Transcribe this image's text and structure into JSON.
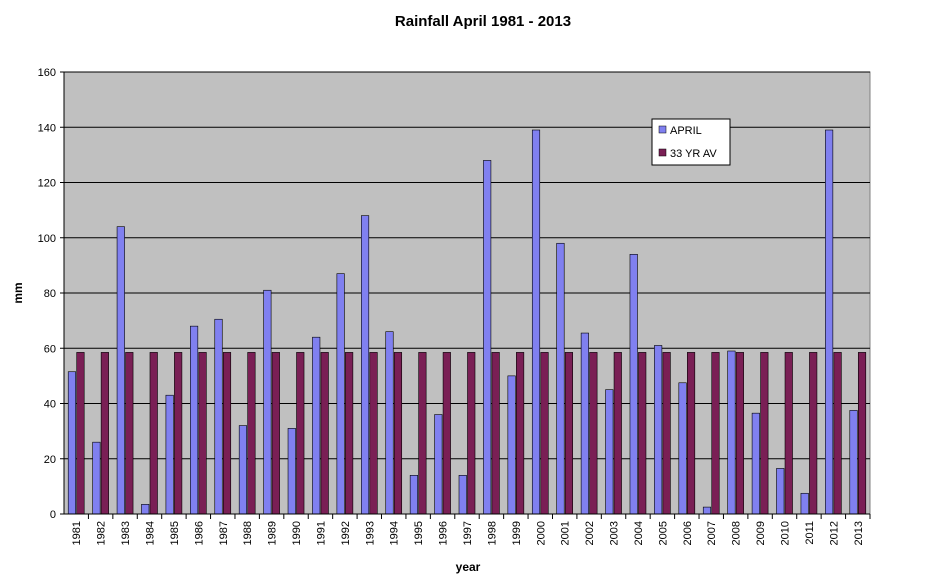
{
  "chart_data": {
    "type": "bar",
    "title": "Rainfall April 1981 - 2013",
    "xlabel": "year",
    "ylabel": "mm",
    "ylim": [
      0,
      160
    ],
    "yticks": [
      0,
      20,
      40,
      60,
      80,
      100,
      120,
      140,
      160
    ],
    "grid": true,
    "legend_position": "top-right",
    "categories": [
      "1981",
      "1982",
      "1983",
      "1984",
      "1985",
      "1986",
      "1987",
      "1988",
      "1989",
      "1990",
      "1991",
      "1992",
      "1993",
      "1994",
      "1995",
      "1996",
      "1997",
      "1998",
      "1999",
      "2000",
      "2001",
      "2002",
      "2003",
      "2004",
      "2005",
      "2006",
      "2007",
      "2008",
      "2009",
      "2010",
      "2011",
      "2012",
      "2013"
    ],
    "series": [
      {
        "name": "APRIL",
        "color": "#8080f0",
        "values": [
          51.5,
          26,
          104,
          3.5,
          43,
          68,
          70.5,
          32,
          81,
          31,
          64,
          87,
          108,
          66,
          14,
          36,
          14,
          128,
          50,
          139,
          98,
          65.5,
          45,
          94,
          61,
          47.5,
          2.5,
          59,
          36.5,
          16.5,
          7.5,
          139,
          37.5
        ]
      },
      {
        "name": "33 YR AV",
        "color": "#7a1f55",
        "values": [
          58.5,
          58.5,
          58.5,
          58.5,
          58.5,
          58.5,
          58.5,
          58.5,
          58.5,
          58.5,
          58.5,
          58.5,
          58.5,
          58.5,
          58.5,
          58.5,
          58.5,
          58.5,
          58.5,
          58.5,
          58.5,
          58.5,
          58.5,
          58.5,
          58.5,
          58.5,
          58.5,
          58.5,
          58.5,
          58.5,
          58.5,
          58.5,
          58.5
        ]
      }
    ],
    "plot_background": "#c0c0c0",
    "gridline_color": "#000000"
  }
}
